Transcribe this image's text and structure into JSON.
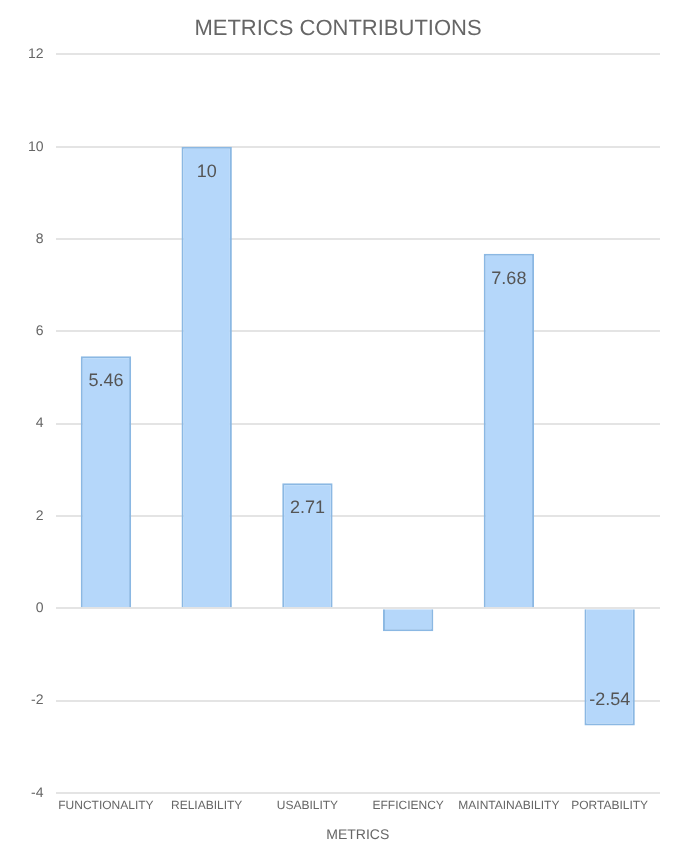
{
  "chart_data": {
    "type": "bar",
    "title": "METRICS CONTRIBUTIONS",
    "xlabel": "METRICS",
    "categories": [
      "FUNCTIONALITY",
      "RELIABILITY",
      "USABILITY",
      "EFFICIENCY",
      "MAINTAINABILITY",
      "PORTABILITY"
    ],
    "values": [
      5.46,
      10,
      2.71,
      -0.5,
      7.68,
      -2.54
    ],
    "value_labels": [
      "5.46",
      "10",
      "2.71",
      null,
      "7.68",
      "-2.54"
    ],
    "color": "#b5d7fa",
    "ylim": [
      -4,
      12
    ],
    "yticks": [
      -4,
      -2,
      0,
      2,
      4,
      6,
      8,
      10,
      12
    ],
    "grid": "y"
  }
}
